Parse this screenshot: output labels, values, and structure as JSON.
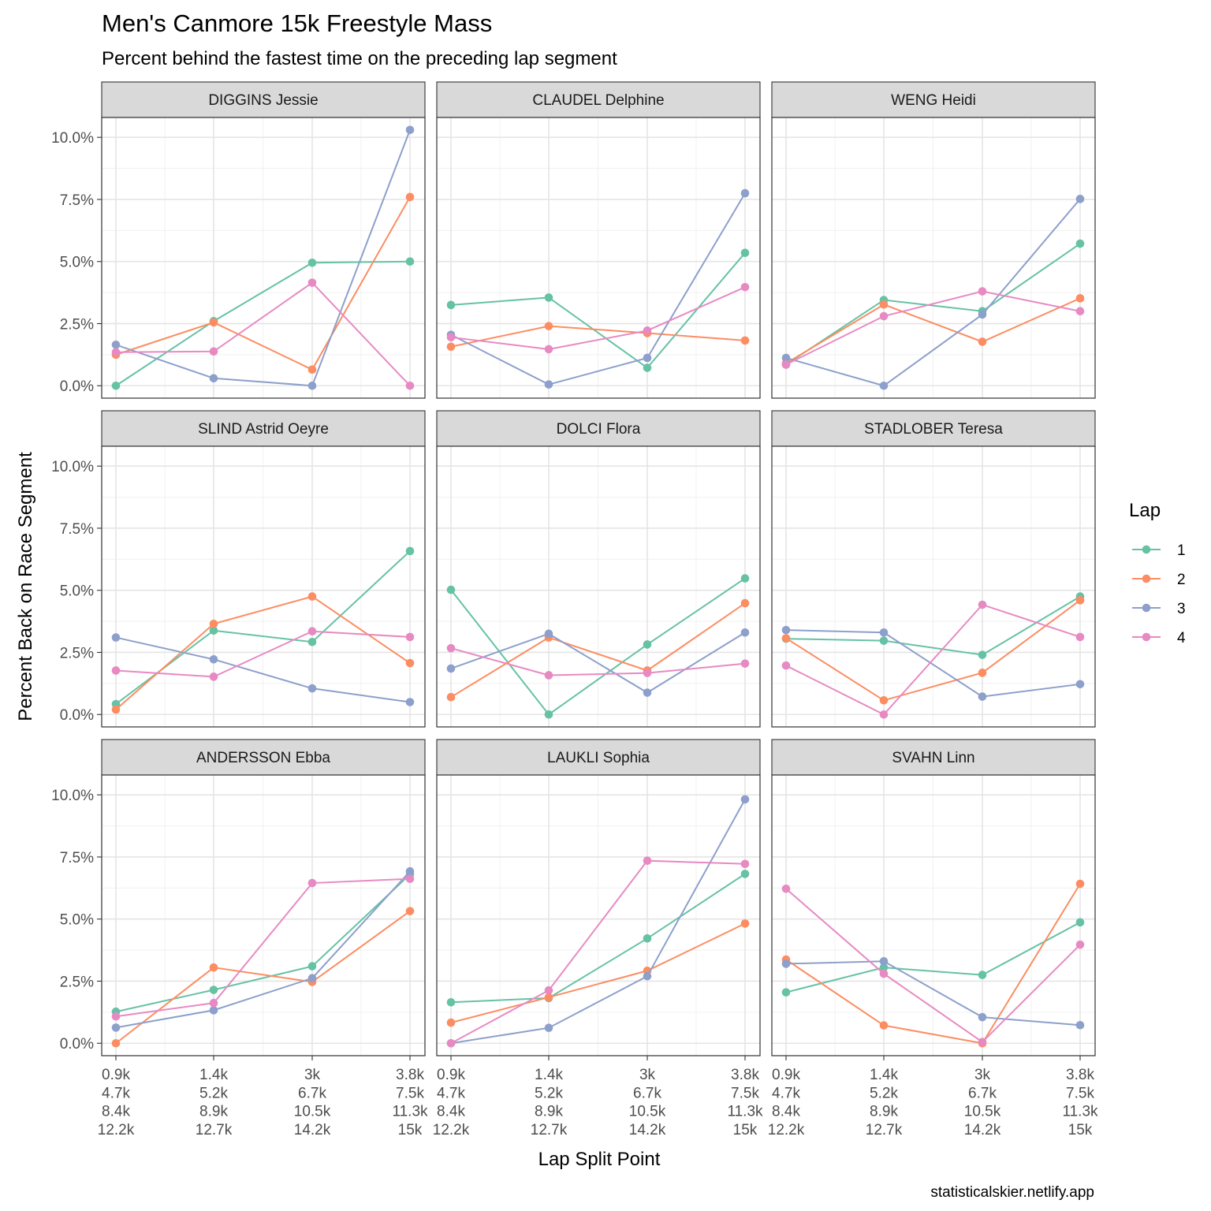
{
  "chart_data": {
    "type": "line",
    "title": "Men's Canmore 15k Freestyle Mass",
    "subtitle": "Percent behind the fastest time on the preceding lap segment",
    "xlabel": "Lap Split Point",
    "ylabel": "Percent Back on Race Segment",
    "caption": "statisticalskier.netlify.app",
    "x_tick_labels": [
      [
        "0.9k",
        "4.7k",
        "8.4k",
        "12.2k"
      ],
      [
        "1.4k",
        "5.2k",
        "8.9k",
        "12.7k"
      ],
      [
        "3k",
        "6.7k",
        "10.5k",
        "14.2k"
      ],
      [
        "3.8k",
        "7.5k",
        "11.3k",
        "15k"
      ]
    ],
    "y_ticks": [
      0,
      2.5,
      5,
      7.5,
      10
    ],
    "y_tick_labels": [
      "0.0%",
      "2.5%",
      "5.0%",
      "7.5%",
      "10.0%"
    ],
    "ylim": [
      -0.5,
      10.8
    ],
    "grid": true,
    "legend": {
      "title": "Lap",
      "position": "right",
      "entries": [
        {
          "label": "1",
          "color": "#66c2a5"
        },
        {
          "label": "2",
          "color": "#fc8d62"
        },
        {
          "label": "3",
          "color": "#8da0cb"
        },
        {
          "label": "4",
          "color": "#e78ac3"
        }
      ]
    },
    "panels": [
      {
        "name": "DIGGINS Jessie",
        "series": [
          {
            "lap": "1",
            "values": [
              0.0,
              2.6,
              4.95,
              5.0
            ]
          },
          {
            "lap": "2",
            "values": [
              1.25,
              2.55,
              0.65,
              7.6
            ]
          },
          {
            "lap": "3",
            "values": [
              1.65,
              0.3,
              0.0,
              10.3
            ]
          },
          {
            "lap": "4",
            "values": [
              1.35,
              1.38,
              4.15,
              0.0
            ]
          }
        ]
      },
      {
        "name": "CLAUDEL Delphine",
        "series": [
          {
            "lap": "1",
            "values": [
              3.25,
              3.55,
              0.72,
              5.35
            ]
          },
          {
            "lap": "2",
            "values": [
              1.57,
              2.4,
              2.12,
              1.82
            ]
          },
          {
            "lap": "3",
            "values": [
              2.05,
              0.05,
              1.12,
              7.75
            ]
          },
          {
            "lap": "4",
            "values": [
              1.95,
              1.47,
              2.22,
              3.97
            ]
          }
        ]
      },
      {
        "name": "WENG Heidi",
        "series": [
          {
            "lap": "1",
            "values": [
              0.85,
              3.45,
              3.0,
              5.72
            ]
          },
          {
            "lap": "2",
            "values": [
              0.9,
              3.27,
              1.77,
              3.52
            ]
          },
          {
            "lap": "3",
            "values": [
              1.12,
              0.0,
              2.87,
              7.52
            ]
          },
          {
            "lap": "4",
            "values": [
              0.85,
              2.8,
              3.8,
              3.0
            ]
          }
        ]
      },
      {
        "name": "SLIND Astrid Oeyre",
        "series": [
          {
            "lap": "1",
            "values": [
              0.42,
              3.38,
              2.92,
              6.58
            ]
          },
          {
            "lap": "2",
            "values": [
              0.2,
              3.65,
              4.75,
              2.07
            ]
          },
          {
            "lap": "3",
            "values": [
              3.1,
              2.22,
              1.05,
              0.5
            ]
          },
          {
            "lap": "4",
            "values": [
              1.77,
              1.52,
              3.35,
              3.12
            ]
          }
        ]
      },
      {
        "name": "DOLCI Flora",
        "series": [
          {
            "lap": "1",
            "values": [
              5.02,
              0.0,
              2.82,
              5.48
            ]
          },
          {
            "lap": "2",
            "values": [
              0.7,
              3.1,
              1.77,
              4.48
            ]
          },
          {
            "lap": "3",
            "values": [
              1.85,
              3.25,
              0.88,
              3.3
            ]
          },
          {
            "lap": "4",
            "values": [
              2.67,
              1.58,
              1.67,
              2.05
            ]
          }
        ]
      },
      {
        "name": "STADLOBER Teresa",
        "series": [
          {
            "lap": "1",
            "values": [
              3.05,
              2.97,
              2.4,
              4.75
            ]
          },
          {
            "lap": "2",
            "values": [
              3.07,
              0.57,
              1.68,
              4.6
            ]
          },
          {
            "lap": "3",
            "values": [
              3.4,
              3.3,
              0.72,
              1.22
            ]
          },
          {
            "lap": "4",
            "values": [
              1.97,
              0.0,
              4.42,
              3.12
            ]
          }
        ]
      },
      {
        "name": "ANDERSSON Ebba",
        "series": [
          {
            "lap": "1",
            "values": [
              1.27,
              2.15,
              3.1,
              6.8
            ]
          },
          {
            "lap": "2",
            "values": [
              0.0,
              3.05,
              2.47,
              5.32
            ]
          },
          {
            "lap": "3",
            "values": [
              0.63,
              1.33,
              2.62,
              6.92
            ]
          },
          {
            "lap": "4",
            "values": [
              1.08,
              1.62,
              6.45,
              6.62
            ]
          }
        ]
      },
      {
        "name": "LAUKLI Sophia",
        "series": [
          {
            "lap": "1",
            "values": [
              1.65,
              1.82,
              4.22,
              6.82
            ]
          },
          {
            "lap": "2",
            "values": [
              0.83,
              1.85,
              2.92,
              4.82
            ]
          },
          {
            "lap": "3",
            "values": [
              0.0,
              0.62,
              2.7,
              9.82
            ]
          },
          {
            "lap": "4",
            "values": [
              0.0,
              2.13,
              7.35,
              7.22
            ]
          }
        ]
      },
      {
        "name": "SVAHN Linn",
        "series": [
          {
            "lap": "1",
            "values": [
              2.05,
              3.05,
              2.75,
              4.87
            ]
          },
          {
            "lap": "2",
            "values": [
              3.37,
              0.72,
              0.0,
              6.42
            ]
          },
          {
            "lap": "3",
            "values": [
              3.2,
              3.3,
              1.05,
              0.73
            ]
          },
          {
            "lap": "4",
            "values": [
              6.22,
              2.8,
              0.05,
              3.97
            ]
          }
        ]
      }
    ]
  }
}
